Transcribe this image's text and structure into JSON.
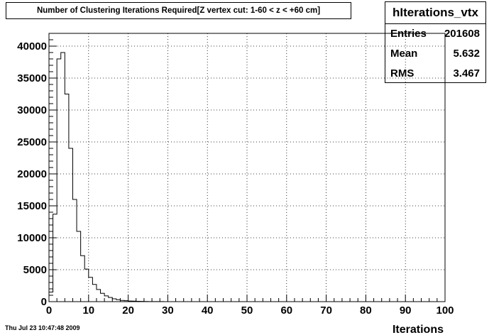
{
  "title": "Number of Clustering Iterations Required[Z vertex cut: 1-60 < z < +60 cm]",
  "stats": {
    "name": "hIterations_vtx",
    "rows": [
      {
        "label": "Entries",
        "value": "201608"
      },
      {
        "label": "Mean",
        "value": "5.632"
      },
      {
        "label": "RMS",
        "value": "3.467"
      }
    ]
  },
  "footer": "Thu Jul 23 10:47:48 2009",
  "chart_data": {
    "type": "histogram",
    "xlabel": "Iterations",
    "ylabel": "",
    "xlim": [
      0,
      100
    ],
    "ylim": [
      0,
      42000
    ],
    "bin_width": 1,
    "grid": true,
    "x_ticks": [
      0,
      10,
      20,
      30,
      40,
      50,
      60,
      70,
      80,
      90,
      100
    ],
    "y_ticks": [
      0,
      5000,
      10000,
      15000,
      20000,
      25000,
      30000,
      35000,
      40000
    ],
    "bin_edges_start": 0,
    "values": [
      1500,
      13700,
      38000,
      39000,
      32500,
      24000,
      16000,
      11000,
      7200,
      5100,
      3800,
      2700,
      1900,
      1300,
      900,
      650,
      450,
      300,
      200,
      150,
      100,
      80,
      60,
      40,
      30,
      20,
      15,
      10,
      8,
      5
    ]
  }
}
